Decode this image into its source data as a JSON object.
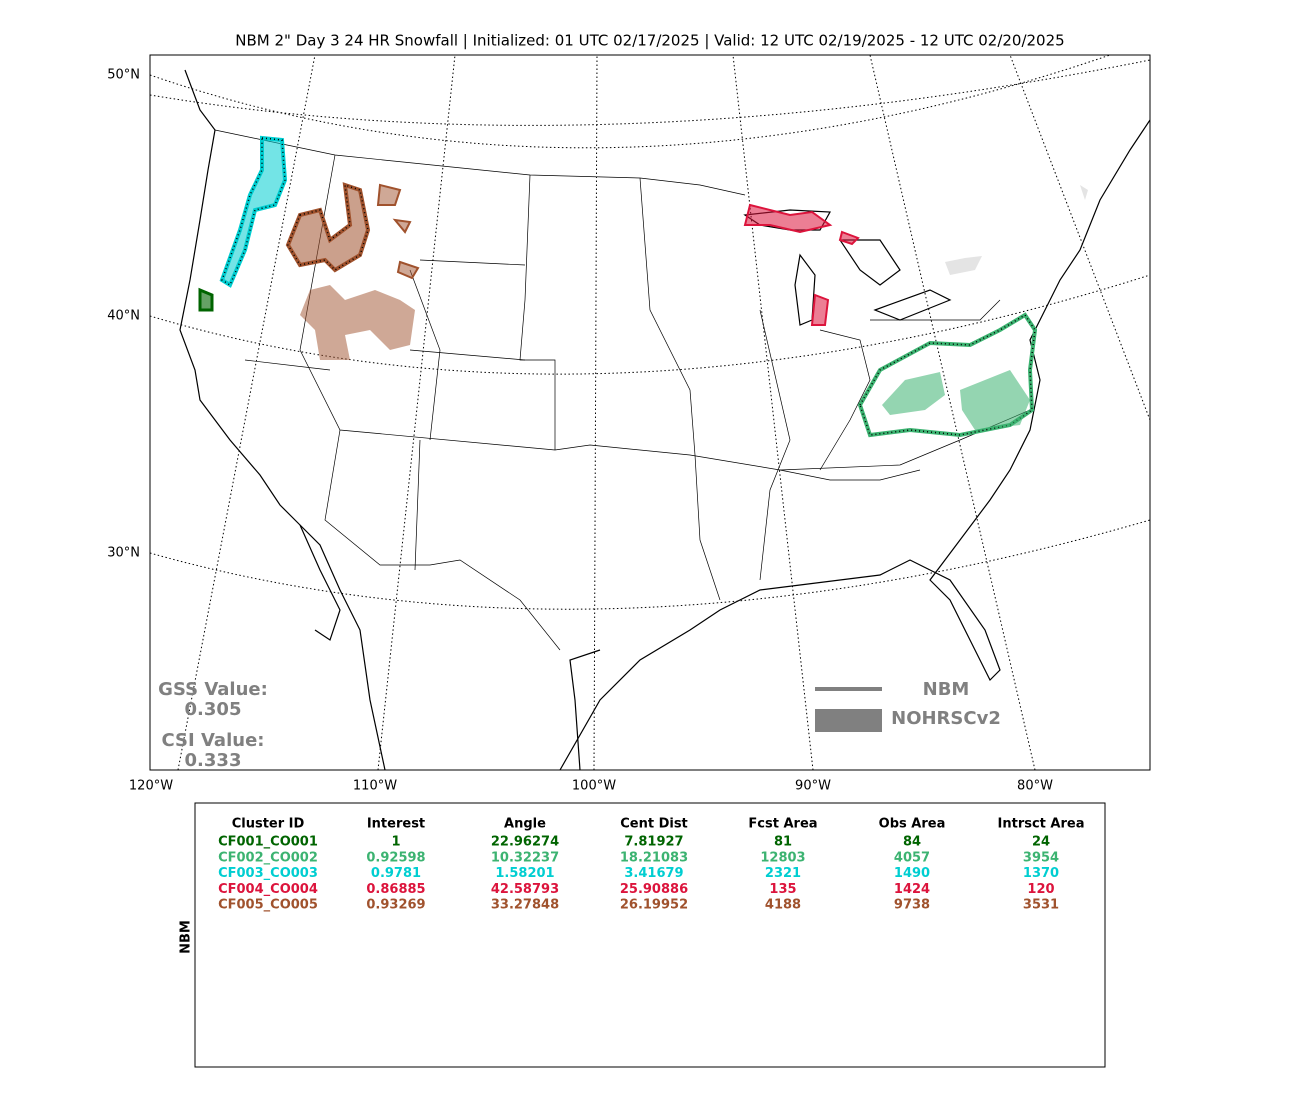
{
  "title": "NBM 2\" Day 3 24 HR Snowfall | Initialized: 01 UTC 02/17/2025 | Valid: 12 UTC 02/19/2025 - 12 UTC 02/20/2025",
  "map": {
    "lat_labels": [
      "50°N",
      "40°N",
      "30°N"
    ],
    "lon_labels": [
      "120°W",
      "110°W",
      "100°W",
      "90°W",
      "80°W"
    ],
    "scores": [
      {
        "label": "GSS Value:",
        "value": "0.305"
      },
      {
        "label": "CSI Value:",
        "value": "0.333"
      }
    ],
    "legend": [
      "NBM",
      "NOHRSCv2"
    ]
  },
  "table": {
    "side_label": "NBM",
    "headers": [
      "Cluster ID",
      "Interest",
      "Angle",
      "Cent Dist",
      "Fcst Area",
      "Obs Area",
      "Intrsct Area"
    ],
    "rows": [
      {
        "color": "#006400",
        "cells": [
          "CF001_CO001",
          "1",
          "22.96274",
          "7.81927",
          "81",
          "84",
          "24"
        ]
      },
      {
        "color": "#3cb371",
        "cells": [
          "CF002_CO002",
          "0.92598",
          "10.32237",
          "18.21083",
          "12803",
          "4057",
          "3954"
        ]
      },
      {
        "color": "#00ced1",
        "cells": [
          "CF003_CO003",
          "0.9781",
          "1.58201",
          "3.41679",
          "2321",
          "1490",
          "1370"
        ]
      },
      {
        "color": "#dc143c",
        "cells": [
          "CF004_CO004",
          "0.86885",
          "42.58793",
          "25.90886",
          "135",
          "1424",
          "120"
        ]
      },
      {
        "color": "#a0522d",
        "cells": [
          "CF005_CO005",
          "0.93269",
          "33.27848",
          "26.19952",
          "4188",
          "9738",
          "3531"
        ]
      }
    ]
  }
}
